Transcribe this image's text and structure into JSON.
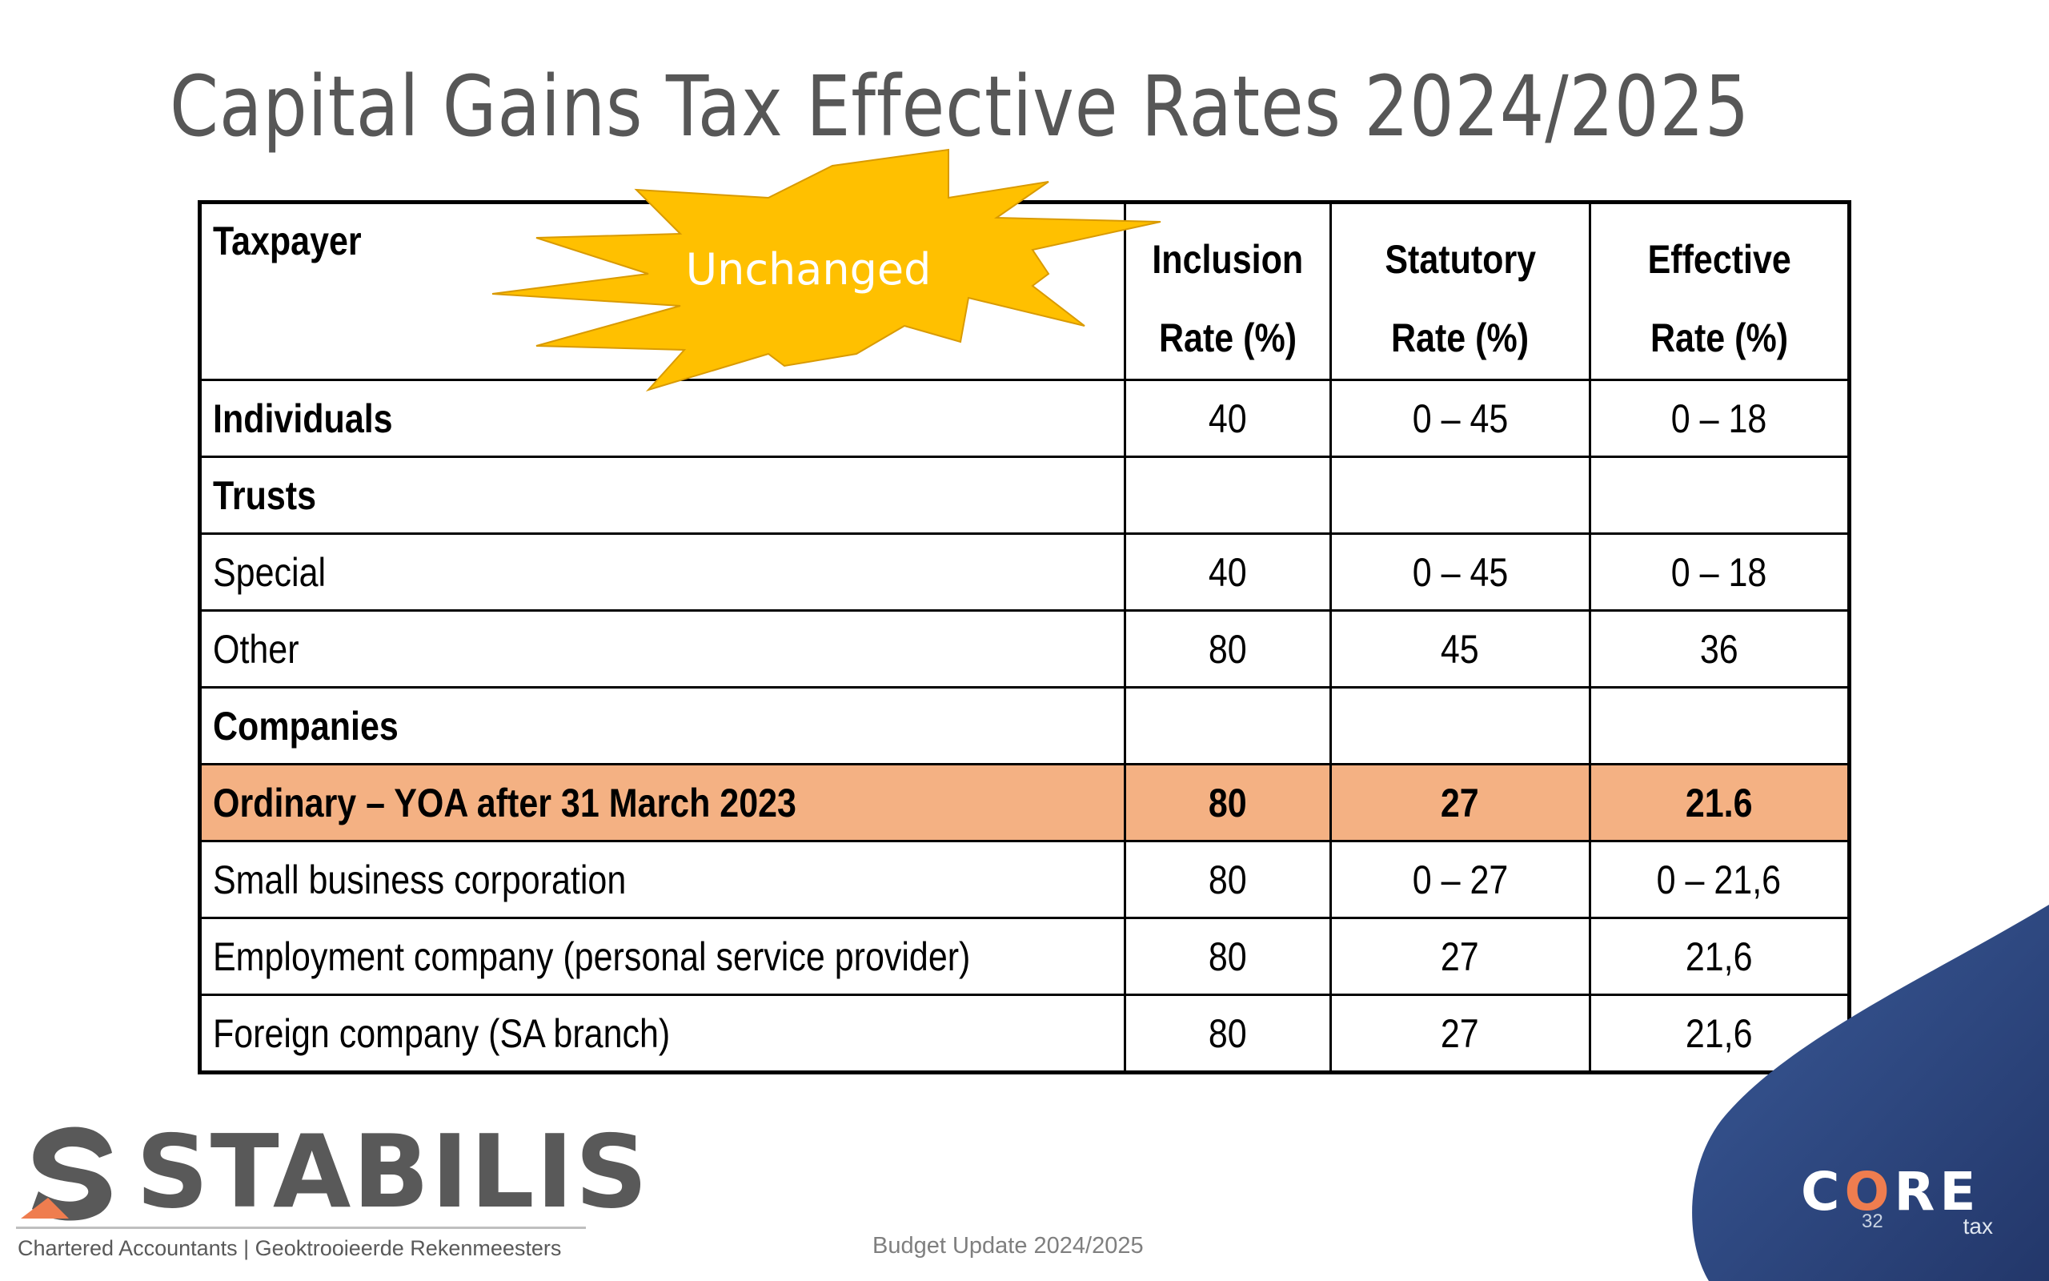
{
  "slide": {
    "title": "Capital Gains Tax Effective Rates 2024/2025",
    "callout": "Unchanged",
    "footer_text": "Budget Update 2024/2025",
    "page_number": "32"
  },
  "table": {
    "headers": {
      "taxpayer": "Taxpayer",
      "inclusion_line1": "Inclusion",
      "inclusion_line2": "Rate (%)",
      "statutory_line1": "Statutory",
      "statutory_line2": "Rate (%)",
      "effective_line1": "Effective",
      "effective_line2": "Rate (%)"
    },
    "rows": [
      {
        "taxpayer": "Individuals",
        "inclusion": "40",
        "statutory": "0 – 45",
        "effective": "0 – 18"
      },
      {
        "taxpayer": "Trusts",
        "inclusion": "",
        "statutory": "",
        "effective": ""
      },
      {
        "taxpayer": "Special",
        "inclusion": "40",
        "statutory": "0 – 45",
        "effective": "0 – 18"
      },
      {
        "taxpayer": "Other",
        "inclusion": "80",
        "statutory": "45",
        "effective": "36"
      },
      {
        "taxpayer": "Companies",
        "inclusion": "",
        "statutory": "",
        "effective": ""
      },
      {
        "taxpayer": "Ordinary – YOA after 31 March 2023",
        "inclusion": "80",
        "statutory": "27",
        "effective": "21.6"
      },
      {
        "taxpayer": "Small business corporation",
        "inclusion": "80",
        "statutory": "0 – 27",
        "effective": "0 – 21,6"
      },
      {
        "taxpayer": "Employment company (personal service provider)",
        "inclusion": "80",
        "statutory": "27",
        "effective": "21,6"
      },
      {
        "taxpayer": "Foreign company (SA branch)",
        "inclusion": "80",
        "statutory": "27",
        "effective": "21,6"
      }
    ]
  },
  "logos": {
    "stabilis_word": "STABILIS",
    "stabilis_tagline": "Chartered Accountants | Geoktrooieerde Rekenmeesters",
    "core_word_c": "C",
    "core_word_o": "O",
    "core_word_re": "RE",
    "core_tax": "tax"
  },
  "colors": {
    "highlight_row": "#f4b183",
    "burst_fill": "#ffc000",
    "title_gray": "#575757",
    "corner_navy": "#2e4a82",
    "accent_orange": "#ef7d4f"
  }
}
